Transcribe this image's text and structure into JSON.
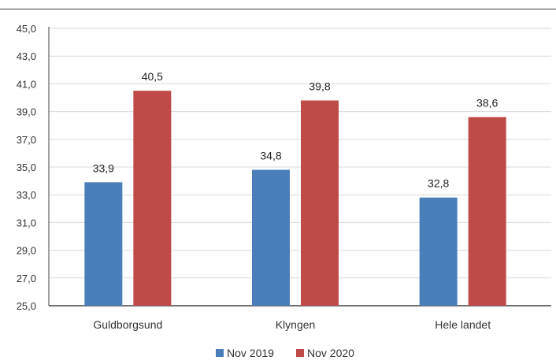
{
  "chart_data": {
    "type": "bar",
    "categories": [
      "Guldborgsund",
      "Klyngen",
      "Hele landet"
    ],
    "series": [
      {
        "name": "Nov 2019",
        "values": [
          33.9,
          34.8,
          32.8
        ],
        "labels": [
          "33,9",
          "34,8",
          "32,8"
        ],
        "color": "#4a7ebb"
      },
      {
        "name": "Nov 2020",
        "values": [
          40.5,
          39.8,
          38.6
        ],
        "labels": [
          "40,5",
          "39,8",
          "38,6"
        ],
        "color": "#be4b48"
      }
    ],
    "ylim": [
      25,
      45
    ],
    "yticks": [
      25,
      27,
      29,
      31,
      33,
      35,
      37,
      39,
      41,
      43,
      45
    ],
    "ytick_labels": [
      "25,0",
      "27,0",
      "29,0",
      "31,0",
      "33,0",
      "35,0",
      "37,0",
      "39,0",
      "41,0",
      "43,0",
      "45,0"
    ],
    "title": "",
    "xlabel": "",
    "ylabel": "",
    "grid": true,
    "legend_position": "bottom"
  }
}
